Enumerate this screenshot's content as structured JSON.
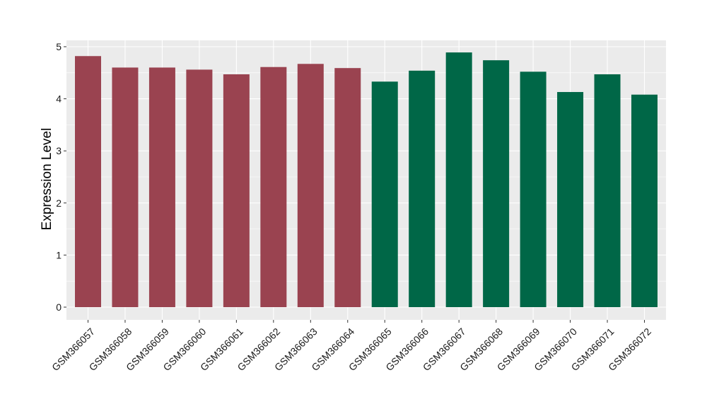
{
  "chart_data": {
    "type": "bar",
    "title": "",
    "xlabel": "",
    "ylabel": "Expression Level",
    "ylim": [
      0,
      5
    ],
    "yticks": [
      0,
      1,
      2,
      3,
      4,
      5
    ],
    "grid": true,
    "background_color": "#EBEBEB",
    "categories": [
      "GSM366057",
      "GSM366058",
      "GSM366059",
      "GSM366060",
      "GSM366061",
      "GSM366062",
      "GSM366063",
      "GSM366064",
      "GSM366065",
      "GSM366066",
      "GSM366067",
      "GSM366068",
      "GSM366069",
      "GSM366070",
      "GSM366071",
      "GSM366072"
    ],
    "values": [
      4.82,
      4.6,
      4.6,
      4.56,
      4.47,
      4.61,
      4.67,
      4.59,
      4.33,
      4.54,
      4.89,
      4.74,
      4.52,
      4.13,
      4.47,
      4.08
    ],
    "bar_colors": [
      "#9A4350",
      "#9A4350",
      "#9A4350",
      "#9A4350",
      "#9A4350",
      "#9A4350",
      "#9A4350",
      "#9A4350",
      "#006747",
      "#006747",
      "#006747",
      "#006747",
      "#006747",
      "#006747",
      "#006747",
      "#006747"
    ]
  }
}
